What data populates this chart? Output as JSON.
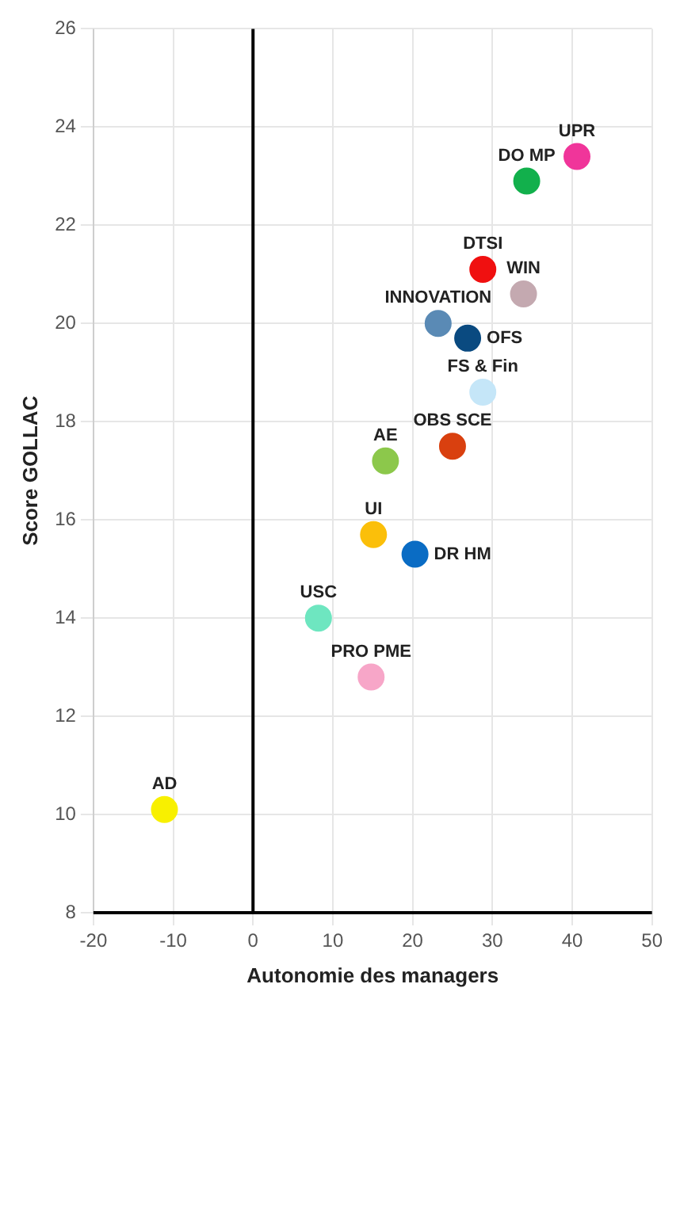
{
  "chart_data": {
    "type": "scatter",
    "xlabel": "Autonomie des managers",
    "ylabel": "Score GOLLAC",
    "xlim": [
      -20,
      50
    ],
    "xticks": [
      -20,
      -10,
      0,
      10,
      20,
      30,
      40,
      50
    ],
    "ylim": [
      8,
      26
    ],
    "yticks": [
      8,
      10,
      12,
      14,
      16,
      18,
      20,
      22,
      24,
      26
    ],
    "grid": true,
    "legend": false,
    "marker": "circle",
    "ref_lines": [
      {
        "axis": "x",
        "value": 0,
        "color": "#000000"
      }
    ],
    "series": [
      {
        "name": "UPR",
        "color": "#f0359a",
        "x": [
          40.6
        ],
        "values": [
          23.4
        ]
      },
      {
        "name": "DO MP",
        "color": "#12b04c",
        "x": [
          34.3
        ],
        "values": [
          22.9
        ]
      },
      {
        "name": "WIN",
        "color": "#c4a9b0",
        "x": [
          33.9
        ],
        "values": [
          20.6
        ]
      },
      {
        "name": "FS & Fin",
        "color": "#c5e6f8",
        "x": [
          28.8
        ],
        "values": [
          18.6
        ]
      },
      {
        "name": "DTSI",
        "color": "#f01010",
        "x": [
          28.8
        ],
        "values": [
          21.1
        ]
      },
      {
        "name": "OFS",
        "color": "#0a4a80",
        "x": [
          26.9
        ],
        "values": [
          19.7
        ]
      },
      {
        "name": "OBS SCE",
        "color": "#d9400f",
        "x": [
          25.0
        ],
        "values": [
          17.5
        ]
      },
      {
        "name": "INNOVATION",
        "color": "#5a8ab5",
        "x": [
          23.2
        ],
        "values": [
          20.0
        ]
      },
      {
        "name": "DR HM",
        "color": "#0a6cc4",
        "x": [
          20.3
        ],
        "values": [
          15.3
        ]
      },
      {
        "name": "AE",
        "color": "#8cc84b",
        "x": [
          16.6
        ],
        "values": [
          17.2
        ]
      },
      {
        "name": "UI",
        "color": "#fbbf0a",
        "x": [
          15.1
        ],
        "values": [
          15.7
        ]
      },
      {
        "name": "PRO PME",
        "color": "#f7a6c8",
        "x": [
          14.8
        ],
        "values": [
          12.8
        ]
      },
      {
        "name": "USC",
        "color": "#6ee6c0",
        "x": [
          8.2
        ],
        "values": [
          14.0
        ]
      },
      {
        "name": "AD",
        "color": "#f8f000",
        "x": [
          -11.1
        ],
        "values": [
          10.1
        ]
      }
    ]
  }
}
